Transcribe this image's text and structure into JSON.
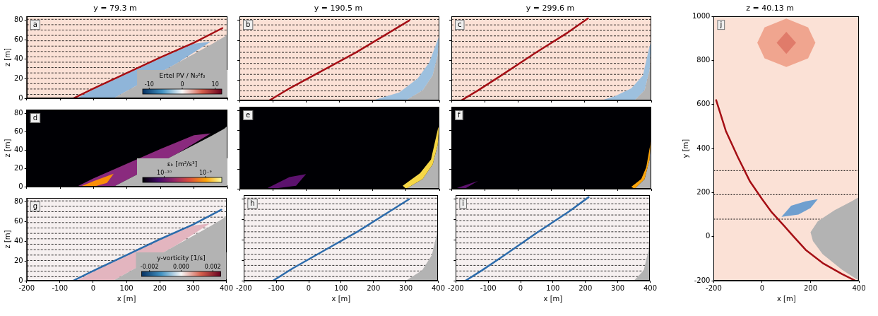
{
  "chart_data": [
    {
      "panel": "a",
      "title": "y = 79.3 m",
      "type": "line",
      "color": "#fbe1d6",
      "xlim": [
        -200,
        400
      ],
      "xticks": [
        -200,
        -100,
        0,
        100,
        200,
        300,
        400
      ],
      "ylim": [
        0,
        84
      ],
      "yticks": [
        0,
        20,
        40,
        60,
        80
      ],
      "y_label": "z [m]",
      "tick_labels": "y",
      "contour_levels": [
        4,
        9.5,
        15,
        20.5,
        26,
        31.5,
        37,
        42.5,
        48,
        53.5,
        59,
        64.5,
        70,
        75.5,
        81
      ],
      "series": [
        {
          "type": "area",
          "color": "#8fb5d9",
          "x": [
            -50,
            0,
            100,
            200,
            300,
            350,
            250,
            150,
            60
          ],
          "values": [
            0,
            9,
            25,
            41,
            56,
            58,
            36,
            17,
            0
          ]
        },
        {
          "type": "area",
          "color": "#b3b3b3",
          "x": [
            60,
            150,
            250,
            350,
            390,
            400,
            400
          ],
          "values": [
            0,
            17,
            36,
            55,
            63,
            66,
            0
          ]
        },
        {
          "type": "line",
          "color": "#a50f15",
          "x": [
            -60,
            0,
            100,
            200,
            300,
            385
          ],
          "values": [
            0,
            10,
            26,
            42,
            57,
            72
          ]
        }
      ],
      "colorbar": {
        "label": "Ertel PV / N₀²f₀",
        "range": [
          -12,
          12
        ],
        "ticks": [
          -10,
          0,
          10
        ],
        "colors": [
          "#053061",
          "#4393c3",
          "#f7f7f7",
          "#d6604d",
          "#67001f"
        ]
      }
    },
    {
      "panel": "b",
      "title": "y = 190.5 m",
      "type": "line",
      "color": "#fbe1d6",
      "xlim": [
        -200,
        400
      ],
      "xticks": [
        -200,
        -100,
        0,
        100,
        200,
        300,
        400
      ],
      "ylim": [
        0,
        84
      ],
      "yticks": [
        0,
        20,
        40,
        60,
        80
      ],
      "tick_labels": false,
      "contour_levels": [
        4,
        9.5,
        15,
        20.5,
        26,
        31.5,
        37,
        42.5,
        48,
        53.5,
        59,
        64.5,
        70,
        75.5,
        81
      ],
      "series": [
        {
          "type": "area",
          "color": "#9dc0de",
          "x": [
            200,
            300,
            350,
            380,
            395,
            400,
            392,
            370,
            335,
            280
          ],
          "values": [
            0,
            0,
            10,
            25,
            45,
            65,
            58,
            38,
            22,
            8
          ]
        },
        {
          "type": "area",
          "color": "#b3b3b3",
          "x": [
            300,
            350,
            380,
            395,
            400,
            400
          ],
          "values": [
            0,
            10,
            25,
            45,
            65,
            0
          ]
        },
        {
          "type": "line",
          "color": "#a50f15",
          "x": [
            -110,
            -50,
            50,
            150,
            250,
            310
          ],
          "values": [
            0,
            12,
            30,
            48,
            68,
            80
          ]
        }
      ]
    },
    {
      "panel": "c",
      "title": "y = 299.6 m",
      "type": "line",
      "color": "#fbe1d6",
      "xlim": [
        -200,
        400
      ],
      "xticks": [
        -200,
        -100,
        0,
        100,
        200,
        300,
        400
      ],
      "ylim": [
        0,
        84
      ],
      "yticks": [
        0,
        20,
        40,
        60,
        80
      ],
      "tick_labels": false,
      "contour_levels": [
        4,
        9.5,
        15,
        20.5,
        26,
        31.5,
        37,
        42.5,
        48,
        53.5,
        59,
        64.5,
        70,
        75.5,
        81
      ],
      "series": [
        {
          "type": "area",
          "color": "#9dc0de",
          "x": [
            250,
            350,
            380,
            395,
            400,
            392,
            375,
            340,
            290
          ],
          "values": [
            0,
            0,
            10,
            30,
            60,
            50,
            25,
            12,
            4
          ]
        },
        {
          "type": "area",
          "color": "#b3b3b3",
          "x": [
            350,
            380,
            395,
            400,
            400
          ],
          "values": [
            0,
            10,
            30,
            60,
            0
          ]
        },
        {
          "type": "line",
          "color": "#a50f15",
          "x": [
            -170,
            -120,
            -50,
            50,
            150,
            210
          ],
          "values": [
            0,
            10,
            25,
            47,
            68,
            82
          ]
        }
      ]
    },
    {
      "panel": "d",
      "type": "line",
      "color": "#000004",
      "xlim": [
        -200,
        400
      ],
      "xticks": [
        -200,
        -100,
        0,
        100,
        200,
        300,
        400
      ],
      "ylim": [
        0,
        84
      ],
      "yticks": [
        0,
        20,
        40,
        60,
        80
      ],
      "y_label": "z [m]",
      "tick_labels": "y",
      "series": [
        {
          "type": "area",
          "color": "#8a2a7e",
          "x": [
            -50,
            0,
            100,
            200,
            300,
            350,
            250,
            150,
            60
          ],
          "values": [
            0,
            9,
            25,
            41,
            56,
            58,
            36,
            17,
            0
          ]
        },
        {
          "type": "area",
          "color": "#f98e09",
          "x": [
            -40,
            0,
            60,
            40,
            0
          ],
          "values": [
            0,
            6,
            14,
            4,
            0
          ]
        },
        {
          "type": "area",
          "color": "#b3b3b3",
          "x": [
            60,
            150,
            250,
            350,
            390,
            400,
            400
          ],
          "values": [
            0,
            17,
            36,
            55,
            63,
            66,
            0
          ]
        }
      ],
      "colorbar": {
        "label": "εₖ [m²/s³]",
        "log": true,
        "range": [
          3e-11,
          2.5e-09
        ],
        "ticks": [
          {
            "value": 1e-10,
            "label": "10⁻¹⁰"
          },
          {
            "value": 1e-09,
            "label": "10⁻⁹"
          }
        ],
        "colors": [
          "#000004",
          "#420a68",
          "#932667",
          "#dd513a",
          "#fca50a",
          "#fcffa4"
        ]
      }
    },
    {
      "panel": "e",
      "type": "line",
      "color": "#000004",
      "xlim": [
        -200,
        400
      ],
      "xticks": [
        -200,
        -100,
        0,
        100,
        200,
        300,
        400
      ],
      "ylim": [
        0,
        84
      ],
      "yticks": [
        0,
        20,
        40,
        60,
        80
      ],
      "tick_labels": false,
      "series": [
        {
          "type": "area",
          "color": "#5c126e",
          "x": [
            -120,
            -50,
            0,
            -30,
            -100
          ],
          "values": [
            0,
            12,
            15,
            3,
            0
          ]
        },
        {
          "type": "area",
          "color": "#b3b3b3",
          "x": [
            300,
            350,
            380,
            395,
            400,
            400
          ],
          "values": [
            0,
            10,
            25,
            45,
            65,
            0
          ]
        },
        {
          "type": "area",
          "color": "#f6d746",
          "x": [
            300,
            350,
            380,
            395,
            400,
            396,
            375,
            342,
            290
          ],
          "values": [
            0,
            10,
            25,
            45,
            65,
            62,
            30,
            16,
            3
          ]
        }
      ]
    },
    {
      "panel": "f",
      "type": "line",
      "color": "#000004",
      "xlim": [
        -200,
        400
      ],
      "xticks": [
        -200,
        -100,
        0,
        100,
        200,
        300,
        400
      ],
      "ylim": [
        0,
        84
      ],
      "yticks": [
        0,
        20,
        40,
        60,
        80
      ],
      "tick_labels": false,
      "series": [
        {
          "type": "area",
          "color": "#5c126e",
          "x": [
            -190,
            -120,
            -160
          ],
          "values": [
            0,
            8,
            0
          ]
        },
        {
          "type": "area",
          "color": "#b3b3b3",
          "x": [
            350,
            380,
            395,
            400,
            400
          ],
          "values": [
            0,
            10,
            30,
            60,
            0
          ]
        },
        {
          "type": "area",
          "color": "#fca50a",
          "x": [
            350,
            380,
            395,
            400,
            397,
            385,
            370,
            340
          ],
          "values": [
            0,
            10,
            30,
            60,
            45,
            22,
            10,
            2
          ]
        }
      ]
    },
    {
      "panel": "g",
      "type": "line",
      "color": "#f6f0f0",
      "xlim": [
        -200,
        400
      ],
      "xticks": [
        -200,
        -100,
        0,
        100,
        200,
        300,
        400
      ],
      "ylim": [
        0,
        84
      ],
      "yticks": [
        0,
        20,
        40,
        60,
        80
      ],
      "x_label": "x [m]",
      "y_label": "z [m]",
      "tick_labels": true,
      "contour_levels": [
        4,
        9.5,
        15,
        20.5,
        26,
        31.5,
        37,
        42.5,
        48,
        53.5,
        59,
        64.5,
        70,
        75.5,
        81
      ],
      "series": [
        {
          "type": "area",
          "color": "#e3b5bf",
          "x": [
            -50,
            0,
            100,
            200,
            300,
            350,
            250,
            150,
            60
          ],
          "values": [
            0,
            9,
            25,
            41,
            56,
            58,
            36,
            17,
            0
          ]
        },
        {
          "type": "area",
          "color": "#b3b3b3",
          "x": [
            60,
            150,
            250,
            350,
            390,
            400,
            400
          ],
          "values": [
            0,
            17,
            36,
            55,
            63,
            66,
            0
          ]
        },
        {
          "type": "line",
          "color": "#2c6bab",
          "x": [
            -60,
            0,
            100,
            200,
            300,
            385
          ],
          "values": [
            0,
            10,
            26,
            42,
            57,
            72
          ]
        }
      ],
      "colorbar": {
        "label": "y-vorticity [1/s]",
        "range": [
          -0.0025,
          0.0025
        ],
        "ticks": [
          -0.002,
          {
            "value": 0,
            "label": "0.000"
          },
          0.002
        ],
        "colors": [
          "#053061",
          "#4393c3",
          "#f7f7f7",
          "#d6604d",
          "#67001f"
        ]
      }
    },
    {
      "panel": "h",
      "type": "line",
      "color": "#f6f0f0",
      "xlim": [
        -200,
        400
      ],
      "xticks": [
        -200,
        -100,
        0,
        100,
        200,
        300,
        400
      ],
      "ylim": [
        0,
        84
      ],
      "yticks": [
        0,
        20,
        40,
        60,
        80
      ],
      "x_label": "x [m]",
      "tick_labels": "x",
      "contour_levels": [
        4,
        9.5,
        15,
        20.5,
        26,
        31.5,
        37,
        42.5,
        48,
        53.5,
        59,
        64.5,
        70,
        75.5,
        81
      ],
      "series": [
        {
          "type": "area",
          "color": "#b3b3b3",
          "x": [
            300,
            350,
            380,
            395,
            400,
            400
          ],
          "values": [
            0,
            10,
            25,
            45,
            65,
            0
          ]
        },
        {
          "type": "line",
          "color": "#2c6bab",
          "x": [
            -110,
            -50,
            50,
            150,
            250,
            310
          ],
          "values": [
            0,
            12,
            30,
            48,
            68,
            80
          ]
        }
      ]
    },
    {
      "panel": "i",
      "type": "line",
      "color": "#f6f0f0",
      "xlim": [
        -200,
        400
      ],
      "xticks": [
        -200,
        -100,
        0,
        100,
        200,
        300,
        400
      ],
      "ylim": [
        0,
        84
      ],
      "yticks": [
        0,
        20,
        40,
        60,
        80
      ],
      "x_label": "x [m]",
      "tick_labels": "x",
      "contour_levels": [
        4,
        9.5,
        15,
        20.5,
        26,
        31.5,
        37,
        42.5,
        48,
        53.5,
        59,
        64.5,
        70,
        75.5,
        81
      ],
      "series": [
        {
          "type": "area",
          "color": "#b3b3b3",
          "x": [
            350,
            380,
            395,
            400,
            400
          ],
          "values": [
            0,
            10,
            30,
            60,
            0
          ]
        },
        {
          "type": "line",
          "color": "#2c6bab",
          "x": [
            -170,
            -120,
            -50,
            50,
            150,
            210
          ],
          "values": [
            0,
            10,
            25,
            47,
            68,
            82
          ]
        }
      ]
    },
    {
      "panel": "j",
      "title": "z = 40.13 m",
      "type": "line",
      "color": "#fbe1d6",
      "xlim": [
        -200,
        400
      ],
      "xticks": [
        -200,
        0,
        200,
        400
      ],
      "ylim": [
        -200,
        1000
      ],
      "yticks": [
        -200,
        0,
        200,
        400,
        600,
        800,
        1000
      ],
      "x_label": "x [m]",
      "y_label": "y [m]",
      "tick_labels": true,
      "sections": [
        79.3,
        190.5,
        299.6
      ],
      "series": [
        {
          "type": "area",
          "color": "#f0a58f",
          "x": [
            100,
            190,
            220,
            190,
            100,
            10,
            -20,
            10
          ],
          "values": [
            990,
            950,
            880,
            810,
            770,
            810,
            880,
            950
          ]
        },
        {
          "type": "area",
          "color": "#e07b6a",
          "x": [
            100,
            140,
            100,
            60
          ],
          "values": [
            930,
            880,
            830,
            880
          ]
        },
        {
          "type": "area",
          "color": "#6f9fcf",
          "x": [
            80,
            150,
            200,
            230,
            180,
            120
          ],
          "values": [
            90,
            100,
            130,
            170,
            160,
            140
          ]
        },
        {
          "type": "area",
          "color": "#b3b3b3",
          "x": [
            400,
            330,
            250,
            210,
            200,
            230,
            300,
            370,
            400
          ],
          "values": [
            -200,
            -150,
            -80,
            -20,
            20,
            70,
            120,
            160,
            180
          ]
        },
        {
          "type": "line",
          "color": "#a50f15",
          "x": [
            -190,
            -150,
            -100,
            -50,
            0,
            40,
            90,
            130,
            180,
            250,
            330,
            385
          ],
          "values": [
            620,
            480,
            360,
            250,
            170,
            110,
            50,
            0,
            -60,
            -120,
            -170,
            -200
          ]
        }
      ]
    }
  ]
}
